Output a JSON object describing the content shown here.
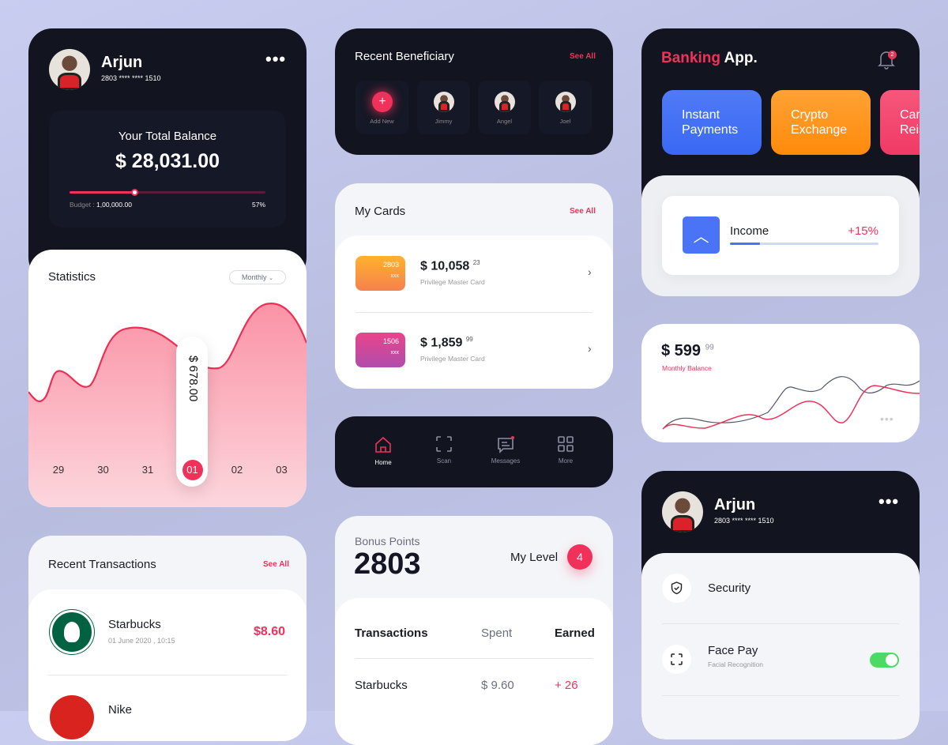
{
  "profile": {
    "name": "Arjun",
    "card_number": "2803 **** **** 1510",
    "menu_icon": "more-horizontal-icon"
  },
  "balance": {
    "title": "Your Total Balance",
    "amount": "$ 28,031.00",
    "budget_label": "Budget :",
    "budget_value": "1,00,000.00",
    "percent_label": "57%",
    "progress": 57
  },
  "statistics": {
    "title": "Statistics",
    "period": "Monthly",
    "tooltip": "$ 678.00",
    "days": [
      "29",
      "30",
      "31",
      "01",
      "02",
      "03"
    ],
    "selected_day": "01"
  },
  "transactions": {
    "title": "Recent Transactions",
    "see_all": "See All",
    "items": [
      {
        "merchant": "Starbucks",
        "date": "01 June 2020 , 10:15",
        "amount": "$8.60"
      },
      {
        "merchant": "Nike"
      }
    ]
  },
  "beneficiary": {
    "title": "Recent Beneficiary",
    "see_all": "See All",
    "add_label": "Add New",
    "people": [
      "Jimmy",
      "Angel",
      "Joel"
    ]
  },
  "cards": {
    "title": "My Cards",
    "see_all": "See All",
    "items": [
      {
        "number": "2803",
        "mask": "xxx",
        "amount": "$ 10,058",
        "cents": "23",
        "type": "Privilege Master Card"
      },
      {
        "number": "1506",
        "mask": "xxx",
        "amount": "$ 1,859",
        "cents": "99",
        "type": "Privilege Master Card"
      }
    ]
  },
  "nav": {
    "items": [
      {
        "label": "Home",
        "icon": "home-icon",
        "active": true
      },
      {
        "label": "Scan",
        "icon": "scan-icon"
      },
      {
        "label": "Messages",
        "icon": "message-icon"
      },
      {
        "label": "More",
        "icon": "grid-icon"
      }
    ]
  },
  "bonus": {
    "label": "Bonus Points",
    "points": "2803",
    "level_label": "My Level",
    "level": "4",
    "columns": [
      "Transactions",
      "Spent",
      "Earned"
    ],
    "rows": [
      {
        "name": "Starbucks",
        "spent": "$ 9.60",
        "earned": "+ 26"
      }
    ]
  },
  "banking": {
    "brand_a": "Banking",
    "brand_b": "App.",
    "notification_count": "2",
    "tiles": [
      "Instant\nPayments",
      "Crypto\nExchange",
      "Card\nReissue"
    ],
    "income_label": "Income",
    "income_change": "+15%",
    "income_progress": 20
  },
  "monthly": {
    "amount": "$ 599",
    "cents": "99",
    "label": "Monthly Balance"
  },
  "settings": {
    "items": [
      {
        "title": "Security",
        "icon": "shield-check-icon"
      },
      {
        "title": "Face Pay",
        "subtitle": "Facial Recognition",
        "icon": "face-scan-icon",
        "enabled": true
      }
    ]
  },
  "colors": {
    "accent": "#f0325a",
    "dark": "#12141f",
    "blue": "#4a74f5",
    "orange": "#ff8c10",
    "green": "#4cd964"
  }
}
